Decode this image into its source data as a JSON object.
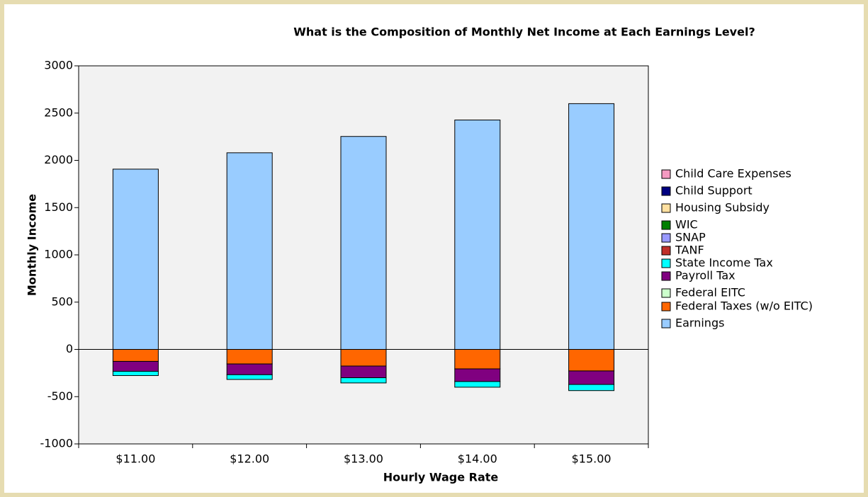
{
  "chart_data": {
    "type": "bar",
    "stacked": true,
    "title": "What is the Composition of Monthly Net Income at Each Earnings Level?",
    "x_label": "Hourly Wage Rate",
    "y_label": "Monthly Income",
    "categories": [
      "$11.00",
      "$12.00",
      "$13.00",
      "$14.00",
      "$15.00"
    ],
    "ylim": [
      -1000,
      3000
    ],
    "yticks": [
      -1000,
      -500,
      0,
      500,
      1000,
      1500,
      2000,
      2500,
      3000
    ],
    "series": [
      {
        "name": "Child Care Expenses",
        "color": "#f49ac1",
        "values": [
          0,
          0,
          0,
          0,
          0
        ]
      },
      {
        "name": "Child Support",
        "color": "#000080",
        "values": [
          0,
          0,
          0,
          0,
          0
        ]
      },
      {
        "name": "Housing Subsidy",
        "color": "#ffe0a0",
        "values": [
          0,
          0,
          0,
          0,
          0
        ]
      },
      {
        "name": "WIC",
        "color": "#008000",
        "values": [
          0,
          0,
          0,
          0,
          0
        ]
      },
      {
        "name": "SNAP",
        "color": "#9999ff",
        "values": [
          0,
          0,
          0,
          0,
          0
        ]
      },
      {
        "name": "TANF",
        "color": "#c0302a",
        "values": [
          0,
          0,
          0,
          0,
          0
        ]
      },
      {
        "name": "State Income Tax",
        "color": "#00ffff",
        "values": [
          -45,
          -50,
          -55,
          -60,
          -65
        ]
      },
      {
        "name": "Payroll Tax",
        "color": "#800080",
        "values": [
          -105,
          -114,
          -124,
          -134,
          -143
        ]
      },
      {
        "name": "Federal EITC",
        "color": "#ccffcc",
        "values": [
          0,
          0,
          0,
          0,
          0
        ]
      },
      {
        "name": "Federal Taxes (w/o EITC)",
        "color": "#ff6600",
        "values": [
          -127,
          -154,
          -176,
          -206,
          -228
        ]
      },
      {
        "name": "Earnings",
        "color": "#99ccff",
        "values": [
          1907,
          2080,
          2253,
          2427,
          2600
        ]
      }
    ]
  }
}
